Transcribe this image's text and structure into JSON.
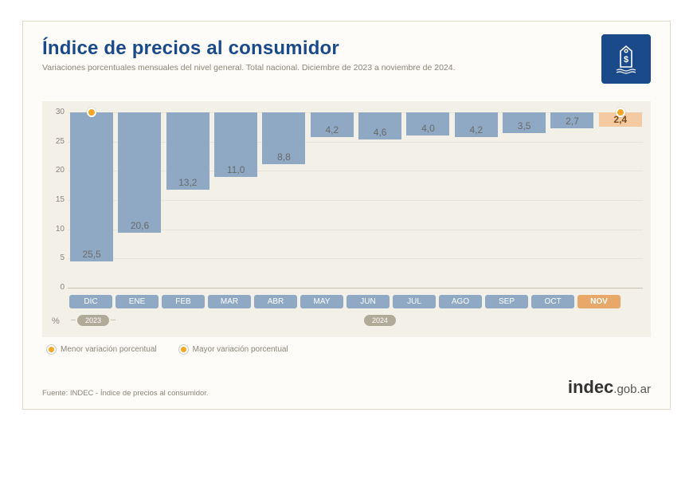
{
  "title": "Índice de precios al consumidor",
  "subtitle": "Variaciones porcentuales mensuales del nivel general. Total nacional. Diciembre de 2023 a noviembre de 2024.",
  "chart": {
    "type": "bar",
    "ylim": [
      0,
      30
    ],
    "ytick_step": 5,
    "yticks": [
      "0",
      "5",
      "10",
      "15",
      "20",
      "25",
      "30"
    ],
    "pct_symbol": "%",
    "bar_color": "#8fa8c4",
    "highlight_color": "#f4caa3",
    "highlight_label_bg": "#e8a86a",
    "marker_color": "#f5a623",
    "background_color": "#f3f0e8",
    "grid_color": "#e8e3d7",
    "baseline_color": "#c9c2b0",
    "text_color": "#8a8476",
    "value_color": "#6a6a6a",
    "highlight_value_color": "#7a4a1a",
    "data": [
      {
        "label": "DIC",
        "value": 25.5,
        "display": "25,5",
        "year": "2023",
        "is_max": true
      },
      {
        "label": "ENE",
        "value": 20.6,
        "display": "20,6",
        "year": "2024"
      },
      {
        "label": "FEB",
        "value": 13.2,
        "display": "13,2",
        "year": "2024"
      },
      {
        "label": "MAR",
        "value": 11.0,
        "display": "11,0",
        "year": "2024"
      },
      {
        "label": "ABR",
        "value": 8.8,
        "display": "8,8",
        "year": "2024"
      },
      {
        "label": "MAY",
        "value": 4.2,
        "display": "4,2",
        "year": "2024"
      },
      {
        "label": "JUN",
        "value": 4.6,
        "display": "4,6",
        "year": "2024"
      },
      {
        "label": "JUL",
        "value": 4.0,
        "display": "4,0",
        "year": "2024"
      },
      {
        "label": "AGO",
        "value": 4.2,
        "display": "4,2",
        "year": "2024"
      },
      {
        "label": "SEP",
        "value": 3.5,
        "display": "3,5",
        "year": "2024"
      },
      {
        "label": "OCT",
        "value": 2.7,
        "display": "2,7",
        "year": "2024"
      },
      {
        "label": "NOV",
        "value": 2.4,
        "display": "2,4",
        "year": "2024",
        "highlight": true,
        "is_min": true
      }
    ],
    "year_segments": [
      {
        "label": "2023",
        "start": 0,
        "end": 1
      },
      {
        "label": "2024",
        "start": 1,
        "end": 12
      }
    ]
  },
  "legend": {
    "min_label": "Menor variación porcentual",
    "max_label": "Mayor variación porcentual"
  },
  "source": "Fuente: INDEC - Índice de precios al consumidor.",
  "brand": {
    "bold": "indec",
    "rest": ".gob.ar"
  }
}
